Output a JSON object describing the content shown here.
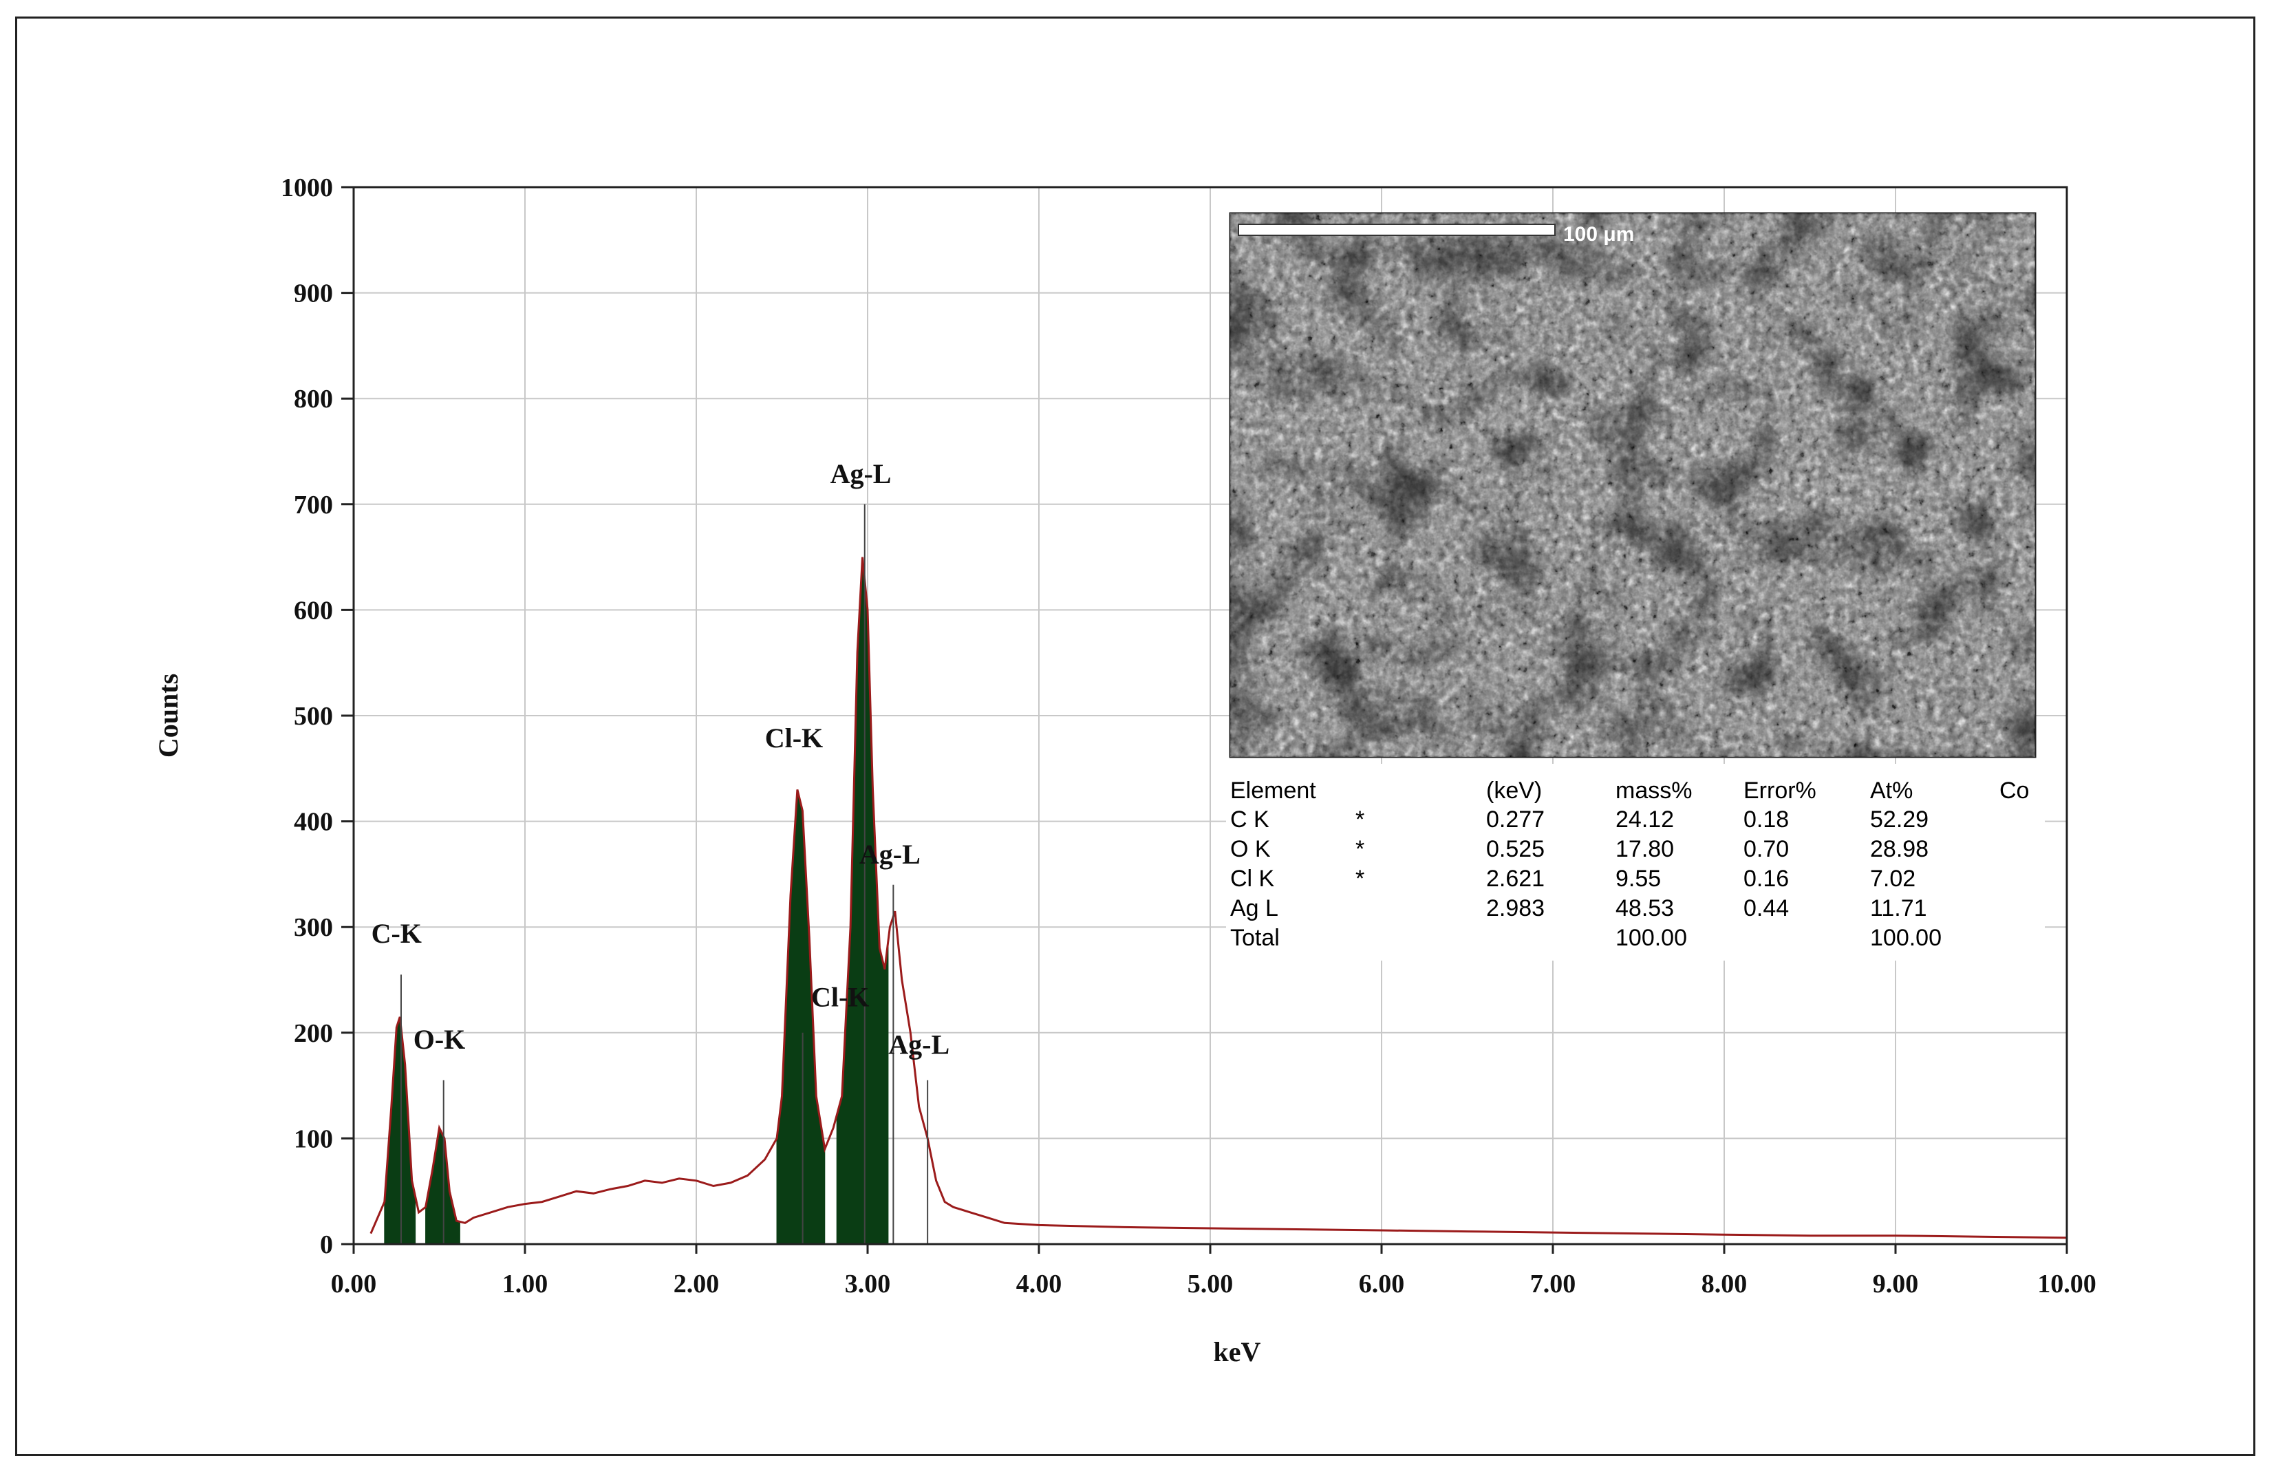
{
  "chart_data": {
    "type": "area",
    "xlabel": "keV",
    "ylabel": "Counts",
    "xlim": [
      0,
      10
    ],
    "ylim": [
      0,
      1000
    ],
    "x_ticks": [
      "0.00",
      "1.00",
      "2.00",
      "3.00",
      "4.00",
      "5.00",
      "6.00",
      "7.00",
      "8.00",
      "9.00",
      "10.00"
    ],
    "y_ticks": [
      "0",
      "100",
      "200",
      "300",
      "400",
      "500",
      "600",
      "700",
      "800",
      "900",
      "1000"
    ],
    "grid": true,
    "spectrum_color": "#9b1b1b",
    "peak_fill_color": "#0a3d14",
    "spectrum": {
      "x": [
        0.1,
        0.18,
        0.22,
        0.25,
        0.27,
        0.3,
        0.34,
        0.38,
        0.42,
        0.46,
        0.5,
        0.53,
        0.56,
        0.6,
        0.65,
        0.7,
        0.8,
        0.9,
        1.0,
        1.1,
        1.2,
        1.3,
        1.4,
        1.5,
        1.6,
        1.7,
        1.8,
        1.9,
        2.0,
        2.1,
        2.2,
        2.3,
        2.4,
        2.47,
        2.5,
        2.55,
        2.59,
        2.62,
        2.66,
        2.7,
        2.75,
        2.8,
        2.85,
        2.9,
        2.94,
        2.97,
        3.0,
        3.03,
        3.07,
        3.1,
        3.13,
        3.16,
        3.2,
        3.25,
        3.3,
        3.35,
        3.4,
        3.45,
        3.5,
        3.6,
        3.7,
        3.8,
        4.0,
        4.5,
        5.0,
        5.5,
        6.0,
        6.5,
        7.0,
        7.5,
        8.0,
        8.5,
        9.0,
        9.5,
        10.0
      ],
      "y": [
        10,
        40,
        130,
        205,
        215,
        170,
        60,
        30,
        35,
        70,
        110,
        100,
        50,
        22,
        20,
        25,
        30,
        35,
        38,
        40,
        45,
        50,
        48,
        52,
        55,
        60,
        58,
        62,
        60,
        55,
        58,
        65,
        80,
        100,
        140,
        330,
        430,
        410,
        290,
        140,
        90,
        110,
        140,
        300,
        560,
        650,
        600,
        430,
        280,
        260,
        300,
        315,
        250,
        200,
        130,
        100,
        60,
        40,
        35,
        30,
        25,
        20,
        18,
        16,
        15,
        14,
        13,
        12,
        11,
        10,
        9,
        8,
        8,
        7,
        6
      ]
    },
    "peak_markers": [
      {
        "x": 0.277,
        "y": 255
      },
      {
        "x": 0.525,
        "y": 155
      },
      {
        "x": 2.621,
        "y": 200
      },
      {
        "x": 2.983,
        "y": 700
      },
      {
        "x": 3.15,
        "y": 340
      },
      {
        "x": 3.35,
        "y": 155
      }
    ],
    "filled_regions": [
      {
        "from": 0.18,
        "to": 0.36
      },
      {
        "from": 0.42,
        "to": 0.62
      },
      {
        "from": 2.47,
        "to": 2.75
      },
      {
        "from": 2.82,
        "to": 3.12
      }
    ],
    "annotations": [
      {
        "text": "C-K",
        "x": 0.25,
        "y": 285
      },
      {
        "text": "O-K",
        "x": 0.5,
        "y": 185
      },
      {
        "text": "Cl-K",
        "x": 2.57,
        "y": 470
      },
      {
        "text": "Ag-L",
        "x": 2.96,
        "y": 720
      },
      {
        "text": "Ag-L",
        "x": 3.13,
        "y": 360
      },
      {
        "text": "Cl-K",
        "x": 2.84,
        "y": 225
      },
      {
        "text": "Ag-L",
        "x": 3.3,
        "y": 180
      }
    ]
  },
  "inset": {
    "scale_bar_label": "100 μm"
  },
  "quant_table": {
    "headers": [
      "Element",
      "",
      "(keV)",
      "mass%",
      "Error%",
      "At%",
      "Co"
    ],
    "rows": [
      [
        "C  K",
        "*",
        "0.277",
        "24.12",
        "0.18",
        "52.29"
      ],
      [
        "O  K",
        "*",
        "0.525",
        "17.80",
        "0.70",
        "28.98"
      ],
      [
        "Cl K",
        "*",
        "2.621",
        "9.55",
        "0.16",
        "7.02"
      ],
      [
        "Ag L",
        "",
        "2.983",
        "48.53",
        "0.44",
        "11.71"
      ],
      [
        "Total",
        "",
        "",
        "100.00",
        "",
        "100.00"
      ]
    ]
  }
}
